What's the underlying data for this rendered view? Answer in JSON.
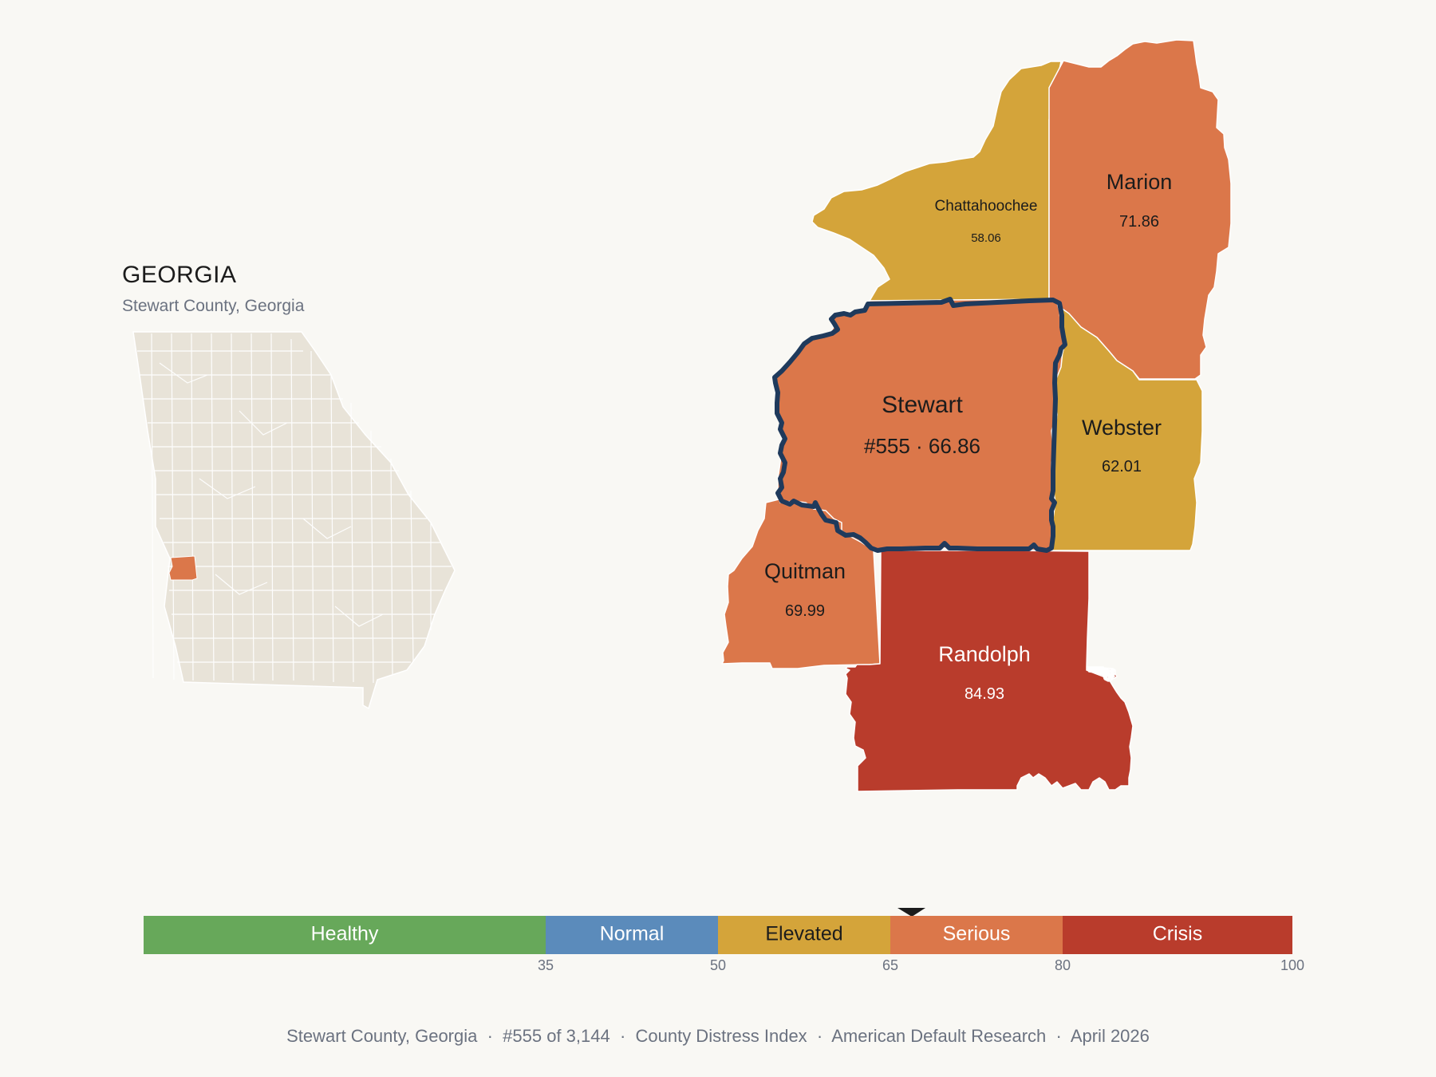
{
  "inset": {
    "title": "GEORGIA",
    "subtitle": "Stewart County, Georgia"
  },
  "counties": {
    "chattahoochee": {
      "name": "Chattahoochee",
      "value": "58.06",
      "category": "Elevated"
    },
    "marion": {
      "name": "Marion",
      "value": "71.86",
      "category": "Serious"
    },
    "stewart": {
      "name": "Stewart",
      "value": "#555 · 66.86",
      "category": "Serious",
      "highlighted": true
    },
    "webster": {
      "name": "Webster",
      "value": "62.01",
      "category": "Elevated"
    },
    "quitman": {
      "name": "Quitman",
      "value": "69.99",
      "category": "Serious"
    },
    "randolph": {
      "name": "Randolph",
      "value": "84.93",
      "category": "Crisis"
    }
  },
  "colors": {
    "healthy": "#67a85a",
    "normal": "#5b8bbb",
    "elevated": "#d4a43a",
    "serious": "#db774a",
    "crisis": "#b93c2c",
    "highlight_outline": "#1f3a5c",
    "state_fill": "#e8e3d8"
  },
  "legend": {
    "segments": [
      {
        "label": "Healthy",
        "from": 0,
        "to": 35,
        "color": "#67a85a"
      },
      {
        "label": "Normal",
        "from": 35,
        "to": 50,
        "color": "#5b8bbb"
      },
      {
        "label": "Elevated",
        "from": 50,
        "to": 65,
        "color": "#d4a43a"
      },
      {
        "label": "Serious",
        "from": 65,
        "to": 80,
        "color": "#db774a"
      },
      {
        "label": "Crisis",
        "from": 80,
        "to": 100,
        "color": "#b93c2c"
      }
    ],
    "ticks": [
      "35",
      "50",
      "65",
      "80",
      "100"
    ],
    "marker_value": 66.86
  },
  "footer": {
    "text": "Stewart County, Georgia  ·  #555 of 3,144  ·  County Distress Index  ·  American Default Research  ·  April 2026"
  }
}
